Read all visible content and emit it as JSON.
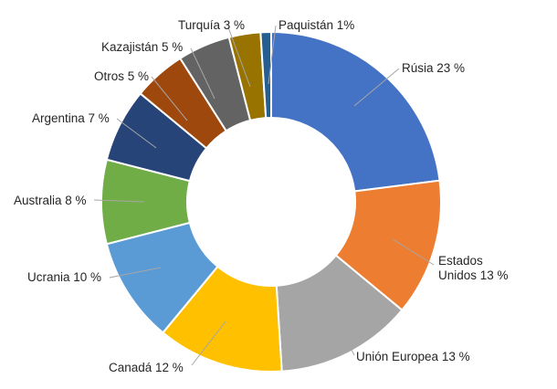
{
  "chart_data": {
    "type": "pie",
    "variant": "donut",
    "title": "",
    "legend": "none",
    "slices": [
      {
        "name": "Rúsia",
        "value": 23,
        "label": [
          "Rúsia 23 %"
        ],
        "color": "#4472c4"
      },
      {
        "name": "Estados Unidos",
        "value": 13,
        "label": [
          "Estados",
          "Unidos 13 %"
        ],
        "color": "#ed7d31"
      },
      {
        "name": "Unión Europea",
        "value": 13,
        "label": [
          "Unión Europea 13 %"
        ],
        "color": "#a5a5a5"
      },
      {
        "name": "Canadá",
        "value": 12,
        "label": [
          "Canadá 12 %"
        ],
        "color": "#ffc000"
      },
      {
        "name": "Ucrania",
        "value": 10,
        "label": [
          "Ucrania 10 %"
        ],
        "color": "#5b9bd5"
      },
      {
        "name": "Australia",
        "value": 8,
        "label": [
          "Australia 8 %"
        ],
        "color": "#70ad47"
      },
      {
        "name": "Argentina",
        "value": 7,
        "label": [
          "Argentina 7 %"
        ],
        "color": "#264478"
      },
      {
        "name": "Otros",
        "value": 5,
        "label": [
          "Otros 5 %"
        ],
        "color": "#9e480e"
      },
      {
        "name": "Kazajistán",
        "value": 5,
        "label": [
          "Kazajistán 5 %"
        ],
        "color": "#636363"
      },
      {
        "name": "Turquía",
        "value": 3,
        "label": [
          "Turquía 3 %"
        ],
        "color": "#997300"
      },
      {
        "name": "Paquistán",
        "value": 1,
        "label": [
          "Paquistán 1%"
        ],
        "color": "#255e91"
      }
    ]
  }
}
